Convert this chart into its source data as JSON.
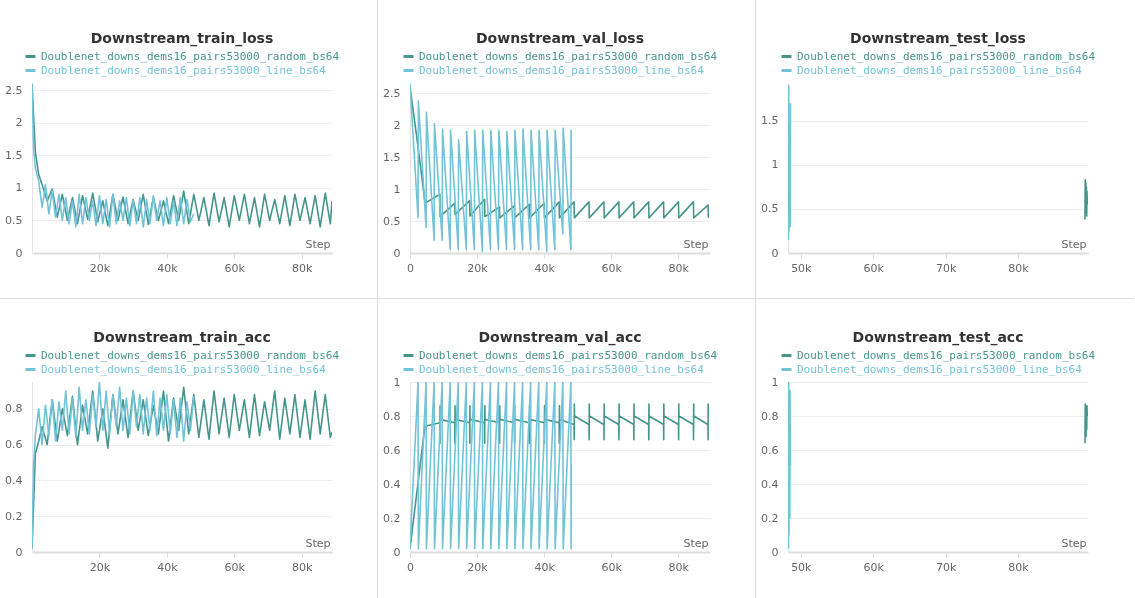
{
  "chart_data": [
    {
      "type": "line",
      "title": "Downstream_train_loss",
      "xlabel": "Step",
      "grid": "y",
      "legend": "top",
      "xlim": [
        0,
        89000
      ],
      "xticks": [
        {
          "value": 20000,
          "label": "20k"
        },
        {
          "value": 40000,
          "label": "40k"
        },
        {
          "value": 60000,
          "label": "60k"
        },
        {
          "value": 80000,
          "label": "80k"
        }
      ],
      "ylim": [
        0,
        2.61
      ],
      "yticks": [
        0,
        0.5,
        1,
        1.5,
        2,
        2.5
      ],
      "series": [
        {
          "name": "Doublenet_downs_dems16_pairs53000_random_bs64",
          "color": "#46958a",
          "x": [
            0,
            1000,
            2000,
            3000,
            4500,
            6000,
            7500,
            9000,
            10500,
            12000,
            13500,
            15000,
            16500,
            18000,
            19500,
            21000,
            22500,
            24000,
            25500,
            27000,
            28500,
            30000,
            31500,
            33000,
            34500,
            36000,
            37500,
            39000,
            40500,
            42000,
            43500,
            45000,
            46500,
            48000,
            49500,
            51000,
            52500,
            54000,
            55500,
            57000,
            58500,
            60000,
            61500,
            63000,
            64500,
            66000,
            67500,
            69000,
            70500,
            72000,
            73500,
            75000,
            76500,
            78000,
            79500,
            81000,
            82500,
            84000,
            85500,
            87000,
            88500,
            89000
          ],
          "values": [
            2.6,
            1.55,
            1.2,
            1.05,
            0.8,
            0.98,
            0.55,
            0.9,
            0.5,
            0.85,
            0.45,
            0.88,
            0.52,
            0.92,
            0.48,
            0.8,
            0.42,
            0.9,
            0.5,
            0.86,
            0.45,
            0.82,
            0.5,
            0.9,
            0.44,
            0.85,
            0.5,
            0.8,
            0.45,
            0.88,
            0.5,
            0.95,
            0.45,
            0.9,
            0.5,
            0.85,
            0.42,
            0.92,
            0.48,
            0.85,
            0.4,
            0.88,
            0.5,
            0.9,
            0.45,
            0.85,
            0.4,
            0.9,
            0.5,
            0.82,
            0.45,
            0.88,
            0.42,
            0.9,
            0.5,
            0.85,
            0.45,
            0.88,
            0.4,
            0.92,
            0.45,
            0.8
          ]
        },
        {
          "name": "Doublenet_downs_dems16_pairs53000_line_bs64",
          "color": "#72c3d8",
          "x": [
            0,
            500,
            1000,
            2000,
            3000,
            4000,
            5000,
            6000,
            7000,
            8000,
            9000,
            10000,
            11000,
            12000,
            13000,
            14000,
            15000,
            16000,
            17000,
            18000,
            19000,
            20000,
            21000,
            22000,
            23000,
            24000,
            25000,
            26000,
            27000,
            28000,
            29000,
            30000,
            31000,
            32000,
            33000,
            34000,
            35000,
            36000,
            37000,
            38000,
            39000,
            40000,
            41000,
            42000,
            43000,
            44000,
            45000,
            46000,
            47000,
            48000
          ],
          "values": [
            2.6,
            1.6,
            1.3,
            1.1,
            0.7,
            1.05,
            0.6,
            0.95,
            0.55,
            0.9,
            0.5,
            0.85,
            0.45,
            0.8,
            0.4,
            0.9,
            0.45,
            0.85,
            0.5,
            0.8,
            0.42,
            0.88,
            0.45,
            0.82,
            0.4,
            0.9,
            0.45,
            0.8,
            0.5,
            0.85,
            0.42,
            0.8,
            0.45,
            0.85,
            0.4,
            0.82,
            0.45,
            0.88,
            0.5,
            0.8,
            0.42,
            0.85,
            0.45,
            0.8,
            0.42,
            0.85,
            0.45,
            0.82,
            0.48,
            0.6
          ]
        }
      ]
    },
    {
      "type": "line",
      "title": "Downstream_val_loss",
      "xlabel": "Step",
      "grid": "y",
      "legend": "top",
      "xlim": [
        0,
        89500
      ],
      "xticks": [
        0,
        {
          "value": 20000,
          "label": "20k"
        },
        {
          "value": 40000,
          "label": "40k"
        },
        {
          "value": 60000,
          "label": "60k"
        },
        {
          "value": 80000,
          "label": "80k"
        }
      ],
      "ylim": [
        0,
        2.66
      ],
      "yticks": [
        0,
        0.5,
        1,
        1.5,
        2,
        2.5
      ],
      "series": [
        {
          "name": "Doublenet_downs_dems16_pairs53000_random_bs64",
          "color": "#46958a",
          "x": [
            0,
            2300,
            4450,
            4530,
            8900,
            8980,
            13350,
            13430,
            17800,
            17880,
            22250,
            22330,
            26700,
            26780,
            31150,
            31230,
            35600,
            35680,
            40050,
            40130,
            44500,
            44580,
            48950,
            49030,
            53400,
            53480,
            57850,
            57930,
            62300,
            62380,
            66750,
            66830,
            71200,
            71280,
            75650,
            75730,
            80100,
            80180,
            84550,
            84630,
            88920,
            89000
          ],
          "values": [
            2.6,
            1.7,
            0.8,
            0.78,
            0.92,
            0.57,
            0.78,
            0.6,
            0.82,
            0.58,
            0.84,
            0.57,
            0.72,
            0.55,
            0.74,
            0.55,
            0.76,
            0.55,
            0.78,
            0.55,
            0.8,
            0.55,
            0.8,
            0.55,
            0.8,
            0.55,
            0.8,
            0.55,
            0.8,
            0.55,
            0.8,
            0.55,
            0.8,
            0.55,
            0.8,
            0.55,
            0.8,
            0.55,
            0.8,
            0.55,
            0.75,
            0.55
          ]
        },
        {
          "name": "Doublenet_downs_dems16_pairs53000_line_bs64",
          "color": "#72c3d8",
          "x": [
            0,
            2400,
            2500,
            4800,
            4900,
            7200,
            7300,
            9600,
            9700,
            12000,
            12100,
            14400,
            14500,
            16800,
            16900,
            19200,
            19300,
            21600,
            21700,
            24000,
            24100,
            26400,
            26500,
            28800,
            28900,
            31200,
            31300,
            33600,
            33700,
            36000,
            36100,
            38400,
            38500,
            40800,
            40900,
            43200,
            43300,
            45600,
            45700,
            48000,
            48050,
            48100
          ],
          "values": [
            2.65,
            0.55,
            2.38,
            0.4,
            2.2,
            0.2,
            2.02,
            0.2,
            1.94,
            0.05,
            1.92,
            0.05,
            1.77,
            0.05,
            1.9,
            0.05,
            1.92,
            0.02,
            1.92,
            0.05,
            1.92,
            0.05,
            1.92,
            0.05,
            1.9,
            0.05,
            1.92,
            0.05,
            1.94,
            0.05,
            1.92,
            0.05,
            1.92,
            0.02,
            1.92,
            0.05,
            1.92,
            0.3,
            1.95,
            0.05,
            1.92,
            1.0
          ]
        }
      ]
    },
    {
      "type": "line",
      "title": "Downstream_test_loss",
      "xlabel": "Step",
      "grid": "y",
      "legend": "top",
      "xlim": [
        48230,
        89670
      ],
      "xticks": [
        {
          "value": 50000,
          "label": "50k"
        },
        {
          "value": 60000,
          "label": "60k"
        },
        {
          "value": 70000,
          "label": "70k"
        },
        {
          "value": 80000,
          "label": "80k"
        }
      ],
      "ylim": [
        0,
        1.93
      ],
      "yticks": [
        0,
        0.5,
        1,
        1.5
      ],
      "series": [
        {
          "name": "Doublenet_downs_dems16_pairs53000_random_bs64",
          "color": "#46958a",
          "x": [
            89250,
            89290,
            89330,
            89370,
            89410,
            89450,
            89490,
            89530,
            89570
          ],
          "values": [
            0.38,
            0.83,
            0.45,
            0.8,
            0.5,
            0.75,
            0.42,
            0.7,
            0.55
          ]
        },
        {
          "name": "Doublenet_downs_dems16_pairs53000_line_bs64",
          "color": "#72c3d8",
          "x": [
            48300,
            48330,
            48360,
            48390,
            48420,
            48450,
            48480,
            48510,
            48540,
            48570
          ],
          "values": [
            0.15,
            1.9,
            0.25,
            1.45,
            0.55,
            0.95,
            0.6,
            1.4,
            0.3,
            1.7
          ]
        }
      ]
    },
    {
      "type": "line",
      "title": "Downstream_train_acc",
      "xlabel": "Step",
      "grid": "y",
      "legend": "top",
      "xlim": [
        0,
        89000
      ],
      "xticks": [
        {
          "value": 20000,
          "label": "20k"
        },
        {
          "value": 40000,
          "label": "40k"
        },
        {
          "value": 60000,
          "label": "60k"
        },
        {
          "value": 80000,
          "label": "80k"
        }
      ],
      "ylim": [
        0,
        0.95
      ],
      "yticks": [
        0,
        0.2,
        0.4,
        0.6,
        0.8
      ],
      "series": [
        {
          "name": "Doublenet_downs_dems16_pairs53000_random_bs64",
          "color": "#46958a",
          "x": [
            0,
            1000,
            2000,
            3000,
            4500,
            6000,
            7500,
            9000,
            10500,
            12000,
            13500,
            15000,
            16500,
            18000,
            19500,
            21000,
            22500,
            24000,
            25500,
            27000,
            28500,
            30000,
            31500,
            33000,
            34500,
            36000,
            37500,
            39000,
            40500,
            42000,
            43500,
            45000,
            46500,
            48000,
            49500,
            51000,
            52500,
            54000,
            55500,
            57000,
            58500,
            60000,
            61500,
            63000,
            64500,
            66000,
            67500,
            69000,
            70500,
            72000,
            73500,
            75000,
            76500,
            78000,
            79500,
            81000,
            82500,
            84000,
            85500,
            87000,
            88500,
            89000
          ],
          "values": [
            0.02,
            0.55,
            0.62,
            0.7,
            0.6,
            0.85,
            0.62,
            0.8,
            0.65,
            0.87,
            0.6,
            0.82,
            0.66,
            0.9,
            0.62,
            0.8,
            0.58,
            0.88,
            0.66,
            0.85,
            0.64,
            0.9,
            0.68,
            0.85,
            0.65,
            0.82,
            0.66,
            0.9,
            0.62,
            0.86,
            0.68,
            0.92,
            0.66,
            0.88,
            0.64,
            0.85,
            0.63,
            0.9,
            0.66,
            0.86,
            0.64,
            0.88,
            0.68,
            0.85,
            0.64,
            0.88,
            0.65,
            0.84,
            0.68,
            0.9,
            0.63,
            0.86,
            0.66,
            0.88,
            0.64,
            0.85,
            0.63,
            0.9,
            0.66,
            0.88,
            0.64,
            0.67
          ]
        },
        {
          "name": "Doublenet_downs_dems16_pairs53000_line_bs64",
          "color": "#72c3d8",
          "x": [
            0,
            500,
            1000,
            2000,
            3000,
            4000,
            5000,
            6000,
            7000,
            8000,
            9000,
            10000,
            11000,
            12000,
            13000,
            14000,
            15000,
            16000,
            17000,
            18000,
            19000,
            20000,
            21000,
            22000,
            23000,
            24000,
            25000,
            26000,
            27000,
            28000,
            29000,
            30000,
            31000,
            32000,
            33000,
            34000,
            35000,
            36000,
            37000,
            38000,
            39000,
            40000,
            41000,
            42000,
            43000,
            44000,
            45000,
            46000,
            47000,
            48000
          ],
          "values": [
            0.02,
            0.5,
            0.65,
            0.8,
            0.6,
            0.82,
            0.65,
            0.85,
            0.62,
            0.84,
            0.68,
            0.9,
            0.66,
            0.86,
            0.64,
            0.92,
            0.68,
            0.85,
            0.66,
            0.88,
            0.7,
            0.95,
            0.68,
            0.9,
            0.66,
            0.88,
            0.7,
            0.92,
            0.68,
            0.86,
            0.66,
            0.9,
            0.7,
            0.88,
            0.66,
            0.86,
            0.68,
            0.9,
            0.65,
            0.86,
            0.68,
            0.88,
            0.66,
            0.85,
            0.64,
            0.86,
            0.62,
            0.84,
            0.68,
            0.87
          ]
        }
      ]
    },
    {
      "type": "line",
      "title": "Downstream_val_acc",
      "xlabel": "Step",
      "grid": "y",
      "legend": "top",
      "xlim": [
        0,
        89500
      ],
      "xticks": [
        0,
        {
          "value": 20000,
          "label": "20k"
        },
        {
          "value": 40000,
          "label": "40k"
        },
        {
          "value": 60000,
          "label": "60k"
        },
        {
          "value": 80000,
          "label": "80k"
        }
      ],
      "ylim": [
        0,
        1
      ],
      "yticks": [
        0,
        0.2,
        0.4,
        0.6,
        0.8,
        1
      ],
      "series": [
        {
          "name": "Doublenet_downs_dems16_pairs53000_random_bs64",
          "color": "#46958a",
          "x": [
            0,
            4450,
            8900,
            8940,
            8980,
            9020,
            13350,
            13390,
            13430,
            13470,
            17800,
            17840,
            17880,
            17920,
            22250,
            22290,
            22330,
            22370,
            26700,
            26740,
            26780,
            26820,
            31150,
            31190,
            31230,
            31270,
            35600,
            35640,
            35680,
            35720,
            40050,
            40090,
            40130,
            40170,
            44500,
            44540,
            44580,
            44620,
            48950,
            48990,
            49030,
            49070,
            53400,
            53440,
            53480,
            53520,
            57850,
            57890,
            57930,
            57970,
            62300,
            62340,
            62380,
            62420,
            66750,
            66790,
            66830,
            66870,
            71200,
            71240,
            71280,
            71320,
            75650,
            75690,
            75730,
            75770,
            80100,
            80140,
            80180,
            80220,
            84550,
            84590,
            84630,
            84670,
            88880,
            88920,
            88960,
            89000
          ],
          "values": [
            0.02,
            0.74,
            0.76,
            0.64,
            0.86,
            0.78,
            0.76,
            0.64,
            0.86,
            0.78,
            0.76,
            0.64,
            0.86,
            0.78,
            0.76,
            0.64,
            0.86,
            0.78,
            0.76,
            0.64,
            0.86,
            0.78,
            0.76,
            0.64,
            0.86,
            0.78,
            0.76,
            0.64,
            0.86,
            0.78,
            0.76,
            0.64,
            0.86,
            0.78,
            0.76,
            0.64,
            0.86,
            0.78,
            0.75,
            0.66,
            0.87,
            0.8,
            0.75,
            0.66,
            0.87,
            0.8,
            0.75,
            0.66,
            0.87,
            0.8,
            0.75,
            0.66,
            0.87,
            0.8,
            0.75,
            0.66,
            0.87,
            0.8,
            0.75,
            0.66,
            0.87,
            0.8,
            0.75,
            0.66,
            0.87,
            0.8,
            0.75,
            0.66,
            0.87,
            0.8,
            0.75,
            0.66,
            0.87,
            0.8,
            0.75,
            0.66,
            0.87,
            0.8
          ]
        },
        {
          "name": "Doublenet_downs_dems16_pairs53000_line_bs64",
          "color": "#72c3d8",
          "x": [
            0,
            2400,
            2500,
            4800,
            4900,
            7200,
            7300,
            9600,
            9700,
            12000,
            12100,
            14400,
            14500,
            16800,
            16900,
            19200,
            19300,
            21600,
            21700,
            24000,
            24100,
            26400,
            26500,
            28800,
            28900,
            31200,
            31300,
            33600,
            33700,
            36000,
            36100,
            38400,
            38500,
            40800,
            40900,
            43200,
            43300,
            45600,
            45700,
            48000,
            48050,
            48100
          ],
          "values": [
            0.02,
            1,
            0.02,
            1,
            0.02,
            1,
            0.02,
            1,
            0.02,
            1,
            0.02,
            1,
            0.02,
            1,
            0.02,
            1,
            0.02,
            1,
            0.02,
            1,
            0.02,
            1,
            0.02,
            1,
            0.02,
            1,
            0.02,
            1,
            0.02,
            1,
            0.02,
            1,
            0.02,
            1,
            0.02,
            1,
            0.02,
            1,
            0.02,
            1,
            0.02,
            0.51
          ]
        }
      ]
    },
    {
      "type": "line",
      "title": "Downstream_test_acc",
      "xlabel": "Step",
      "grid": "y",
      "legend": "top",
      "xlim": [
        48230,
        89670
      ],
      "xticks": [
        {
          "value": 50000,
          "label": "50k"
        },
        {
          "value": 60000,
          "label": "60k"
        },
        {
          "value": 70000,
          "label": "70k"
        },
        {
          "value": 80000,
          "label": "80k"
        }
      ],
      "ylim": [
        0,
        1
      ],
      "yticks": [
        0,
        0.2,
        0.4,
        0.6,
        0.8,
        1
      ],
      "series": [
        {
          "name": "Doublenet_downs_dems16_pairs53000_random_bs64",
          "color": "#46958a",
          "x": [
            89250,
            89290,
            89330,
            89370,
            89410,
            89450,
            89490,
            89530,
            89570
          ],
          "values": [
            0.64,
            0.87,
            0.7,
            0.86,
            0.68,
            0.84,
            0.72,
            0.86,
            0.8
          ]
        },
        {
          "name": "Doublenet_downs_dems16_pairs53000_line_bs64",
          "color": "#72c3d8",
          "x": [
            48300,
            48330,
            48360,
            48390,
            48420,
            48450,
            48480,
            48510,
            48540,
            48570
          ],
          "values": [
            0.02,
            1,
            0.1,
            0.9,
            0.62,
            0.85,
            0.2,
            0.95,
            0.65,
            0.51
          ]
        }
      ]
    }
  ]
}
